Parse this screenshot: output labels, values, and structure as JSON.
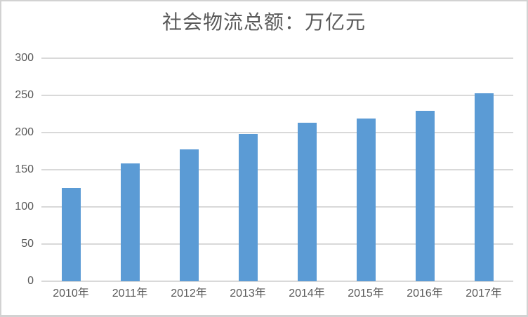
{
  "chart_data": {
    "type": "bar",
    "title": "社会物流总额：万亿元",
    "categories": [
      "2010年",
      "2011年",
      "2012年",
      "2013年",
      "2014年",
      "2015年",
      "2016年",
      "2017年"
    ],
    "values": [
      125.4,
      158.4,
      177.3,
      197.8,
      213.5,
      219.2,
      229.7,
      252.8
    ],
    "ylim": [
      0,
      300
    ],
    "yticks": [
      0,
      50,
      100,
      150,
      200,
      250,
      300
    ],
    "grid": true,
    "legend": "none",
    "bar_color": "#5B9BD5",
    "gridline_color": "#D9D9D9",
    "axis_line_color": "#D9D9D9",
    "tick_label_color": "#595959",
    "title_color": "#595959"
  }
}
